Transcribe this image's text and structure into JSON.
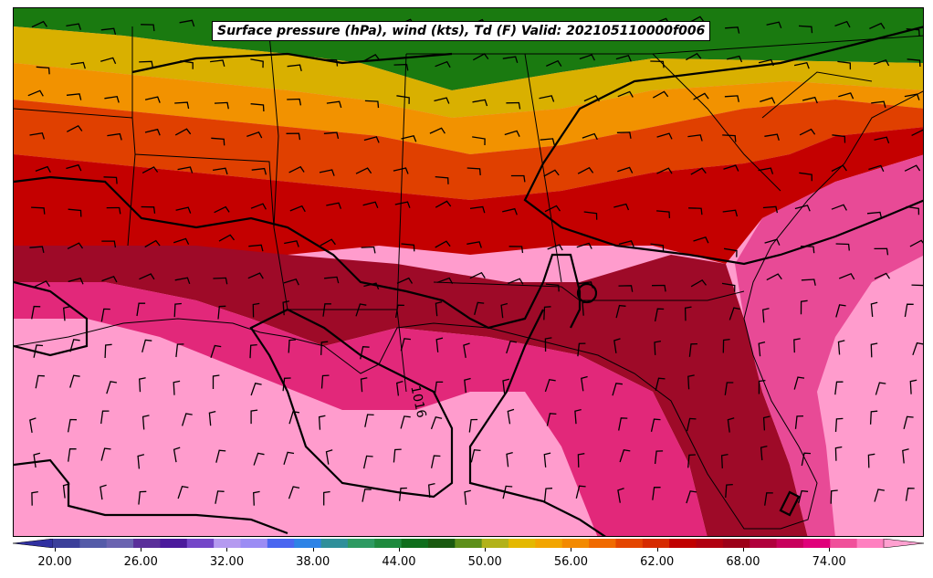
{
  "title": "Surface pressure (hPa), wind (kts), Td (F) Valid: 202105110000f006",
  "contour_label": "1016",
  "colorbar": {
    "ticks": [
      "20.00",
      "26.00",
      "32.00",
      "38.00",
      "44.00",
      "50.00",
      "56.00",
      "62.00",
      "68.00",
      "74.00"
    ],
    "colors": [
      "#3b3f9a",
      "#545ba8",
      "#6a63b0",
      "#5a2f9a",
      "#4b1a9c",
      "#7446c8",
      "#b59af0",
      "#9b8cf4",
      "#4a66f0",
      "#2e83e6",
      "#2f8f9a",
      "#2e9a62",
      "#1f8a3e",
      "#0f6e1c",
      "#1a5a10",
      "#5d8f1a",
      "#b2b21a",
      "#e4b800",
      "#f2a500",
      "#f38a00",
      "#f06a00",
      "#e44500",
      "#d62a00",
      "#c00000",
      "#b00010",
      "#9c0018",
      "#b0003c",
      "#c8005c",
      "#e0007a",
      "#f0509a",
      "#ff80c0"
    ],
    "under_color": "#3030a0",
    "over_color": "#ffa0d0"
  }
}
